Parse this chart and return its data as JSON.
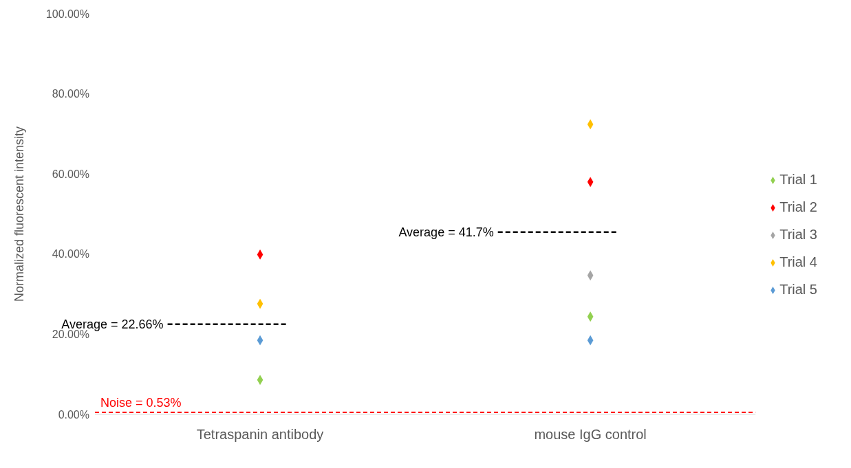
{
  "chart_data": {
    "type": "scatter",
    "ylabel": "Normalized fluorescent intensity",
    "categories": [
      "Tetraspanin antibody",
      "mouse IgG control"
    ],
    "series": [
      {
        "name": "Trial 1",
        "color": "#92d050",
        "values": [
          8.6,
          24.4
        ]
      },
      {
        "name": "Trial 2",
        "color": "#ff0000",
        "values": [
          39.9,
          58.0
        ]
      },
      {
        "name": "Trial 3",
        "color": "#a5a5a5",
        "values": [
          null,
          34.7
        ]
      },
      {
        "name": "Trial 4",
        "color": "#ffc000",
        "values": [
          27.6,
          72.4
        ]
      },
      {
        "name": "Trial 5",
        "color": "#5b9bd5",
        "values": [
          18.5,
          18.5
        ]
      }
    ],
    "ylim": [
      0,
      100
    ],
    "yticks": [
      {
        "value": 0,
        "label": "0.00%"
      },
      {
        "value": 20,
        "label": "20.00%"
      },
      {
        "value": 40,
        "label": "40.00%"
      },
      {
        "value": 60,
        "label": "60.00%"
      },
      {
        "value": 80,
        "label": "80.00%"
      },
      {
        "value": 100,
        "label": "100.00%"
      }
    ],
    "ref_lines": [
      {
        "axis": "y",
        "value": 0.53,
        "label": "Noise = 0.53%",
        "color": "#ff0000",
        "line_style": "dashed"
      }
    ],
    "annotations": [
      "Average = 22.66%",
      "Average = 41.7%"
    ],
    "marker": "diamond",
    "grid": false,
    "legend": "right"
  }
}
